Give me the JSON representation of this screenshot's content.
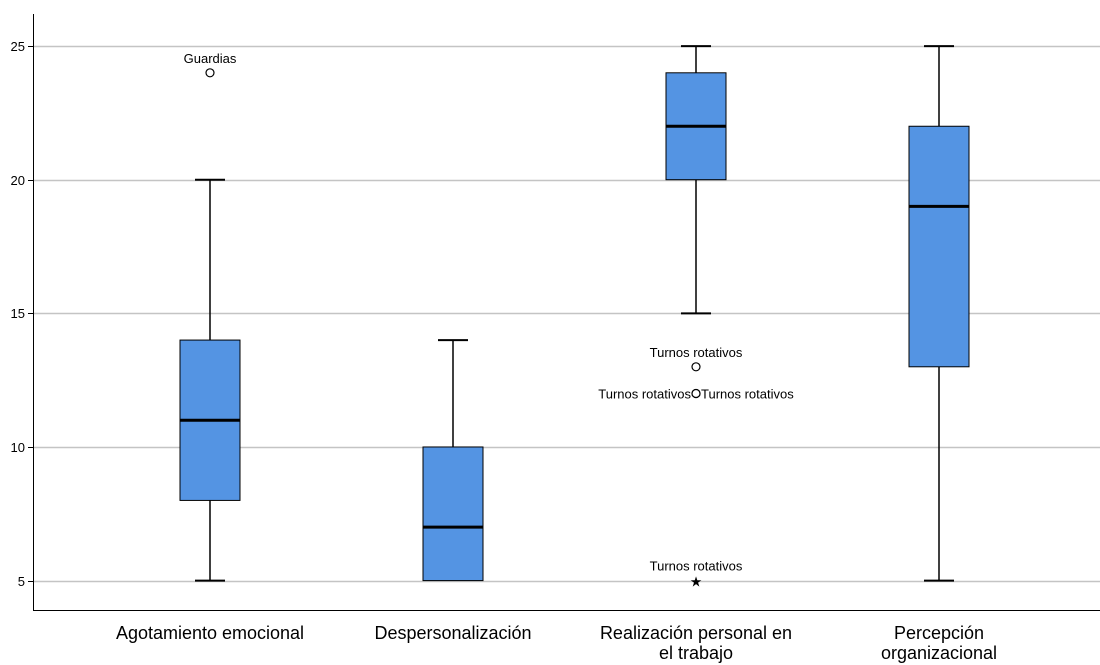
{
  "chart_data": {
    "type": "boxplot",
    "y_ticks": [
      "5",
      "10",
      "15",
      "20",
      "25"
    ],
    "ylim": [
      3.9,
      26.2
    ],
    "grid": true,
    "colors": {
      "box_fill": "#5494E3",
      "box_stroke": "#000000",
      "grid": "#C4C4C4",
      "axis": "#000000"
    },
    "categories": [
      {
        "label_lines": [
          "Agotamiento emocional"
        ],
        "min": 5,
        "q1": 8,
        "median": 11,
        "q3": 14,
        "max": 20,
        "outliers": [
          {
            "value": 24,
            "symbol": "circle",
            "label": "Guardias",
            "label_position": "above"
          }
        ]
      },
      {
        "label_lines": [
          "Despersonalización"
        ],
        "min": 5,
        "q1": 5,
        "median": 7,
        "q3": 10,
        "max": 14,
        "outliers": []
      },
      {
        "label_lines": [
          "Realización personal en",
          "el trabajo"
        ],
        "min": 15,
        "q1": 20,
        "median": 22,
        "q3": 24,
        "max": 25,
        "outliers": [
          {
            "value": 13,
            "symbol": "circle",
            "label": "Turnos rotativos",
            "label_position": "above"
          },
          {
            "value": 12,
            "symbol": "circle",
            "label": "Turnos rotativos",
            "label_position": "left"
          },
          {
            "value": 12,
            "symbol": "circle",
            "label": "Turnos rotativos",
            "label_position": "right"
          },
          {
            "value": 5,
            "symbol": "star",
            "label": "Turnos rotativos",
            "label_position": "above"
          }
        ]
      },
      {
        "label_lines": [
          "Percepción",
          "organizacional"
        ],
        "min": 5,
        "q1": 13,
        "median": 19,
        "q3": 22,
        "max": 25,
        "outliers": []
      }
    ]
  }
}
